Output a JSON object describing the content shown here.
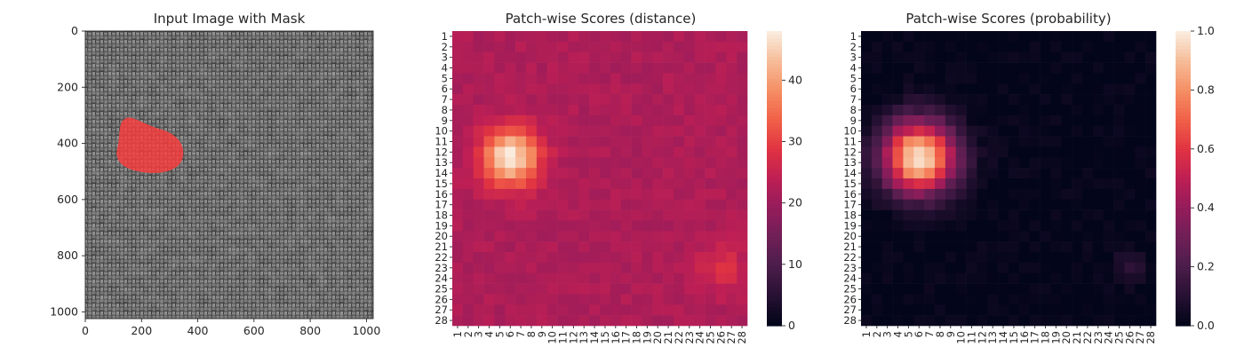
{
  "chart_data": [
    {
      "type": "image",
      "title": "Input Image with Mask",
      "x_ticks": [
        0,
        200,
        400,
        600,
        800,
        1000
      ],
      "y_ticks": [
        0,
        200,
        400,
        600,
        800,
        1000
      ],
      "xlim": [
        0,
        1024
      ],
      "ylim": [
        1024,
        0
      ],
      "mask_color": "#ff3b3b",
      "mask_region": {
        "center_x": 205,
        "center_y": 415,
        "radius_x": 95,
        "radius_y": 90
      },
      "background": "grey woven burlap fabric texture"
    },
    {
      "type": "heatmap",
      "title": "Patch-wise Scores (distance)",
      "grid": 28,
      "row_labels": [
        "1",
        "2",
        "3",
        "4",
        "5",
        "6",
        "7",
        "8",
        "9",
        "10",
        "11",
        "12",
        "13",
        "14",
        "15",
        "16",
        "17",
        "18",
        "19",
        "20",
        "21",
        "22",
        "23",
        "24",
        "25",
        "26",
        "27",
        "28"
      ],
      "col_labels": [
        "1",
        "2",
        "3",
        "4",
        "5",
        "6",
        "7",
        "8",
        "9",
        "10",
        "11",
        "12",
        "13",
        "14",
        "15",
        "16",
        "17",
        "18",
        "19",
        "20",
        "21",
        "22",
        "23",
        "24",
        "25",
        "26",
        "27",
        "28"
      ],
      "colorbar_ticks": [
        0,
        10,
        20,
        30,
        40
      ],
      "vmin": 0,
      "vmax": 48,
      "colormap": "rocket",
      "baseline_value": 22,
      "hotspots": [
        {
          "row": 12.5,
          "col": 6,
          "peak": 48,
          "sigma": 1.9
        },
        {
          "row": 23,
          "col": 26,
          "peak": 6,
          "sigma": 1.6
        }
      ]
    },
    {
      "type": "heatmap",
      "title": "Patch-wise Scores (probability)",
      "grid": 28,
      "row_labels": [
        "1",
        "2",
        "3",
        "4",
        "5",
        "6",
        "7",
        "8",
        "9",
        "10",
        "11",
        "12",
        "13",
        "14",
        "15",
        "16",
        "17",
        "18",
        "19",
        "20",
        "21",
        "22",
        "23",
        "24",
        "25",
        "26",
        "27",
        "28"
      ],
      "col_labels": [
        "1",
        "2",
        "3",
        "4",
        "5",
        "6",
        "7",
        "8",
        "9",
        "10",
        "11",
        "12",
        "13",
        "14",
        "15",
        "16",
        "17",
        "18",
        "19",
        "20",
        "21",
        "22",
        "23",
        "24",
        "25",
        "26",
        "27",
        "28"
      ],
      "colorbar_ticks": [
        0.0,
        0.2,
        0.4,
        0.6,
        0.8,
        1.0
      ],
      "vmin": 0,
      "vmax": 1,
      "colormap": "rocket",
      "hotspots": [
        {
          "row": 12.5,
          "col": 6,
          "peak": 1.0,
          "sigma": 2.4
        },
        {
          "row": 23,
          "col": 26,
          "peak": 0.12,
          "sigma": 1.0
        }
      ]
    }
  ]
}
